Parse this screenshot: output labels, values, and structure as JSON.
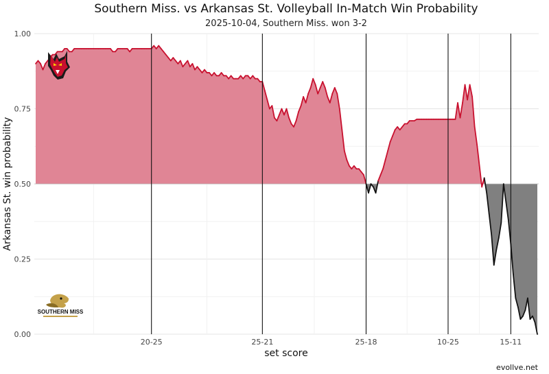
{
  "chart_data": {
    "type": "area",
    "title": "Southern Miss. vs Arkansas St. Volleyball In-Match Win Probability",
    "subtitle": "2025-10-04, Southern Miss. won 3-2",
    "xlabel": "set score",
    "ylabel": "Arkansas St. win probability",
    "caption": "evollve.net",
    "ylim": [
      0,
      1
    ],
    "yticks": [
      "0.00",
      "0.25",
      "0.50",
      "0.75",
      "1.00"
    ],
    "baseline": 0.5,
    "grid": true,
    "set_boundaries": [
      {
        "point": 48,
        "label": "20-25"
      },
      {
        "point": 94,
        "label": "25-21"
      },
      {
        "point": 137,
        "label": "25-18"
      },
      {
        "point": 171,
        "label": "10-25"
      },
      {
        "point": 197,
        "label": "15-11"
      }
    ],
    "series": [
      {
        "team": "Arkansas St.",
        "color": "#c8102e",
        "fill": "#e08595",
        "logo": "red-wolf-logo",
        "values": [
          0.9,
          0.91,
          0.9,
          0.88,
          0.9,
          0.91,
          0.92,
          0.93,
          0.93,
          0.94,
          0.94,
          0.94,
          0.95,
          0.95,
          0.94,
          0.94,
          0.95,
          0.95,
          0.95,
          0.95,
          0.95,
          0.95,
          0.95,
          0.95,
          0.95,
          0.95,
          0.95,
          0.95,
          0.95,
          0.95,
          0.95,
          0.95,
          0.94,
          0.94,
          0.95,
          0.95,
          0.95,
          0.95,
          0.95,
          0.94,
          0.95,
          0.95,
          0.95,
          0.95,
          0.95,
          0.95,
          0.95,
          0.95,
          0.95,
          0.96,
          0.95,
          0.96,
          0.95,
          0.94,
          0.93,
          0.92,
          0.91,
          0.92,
          0.91,
          0.9,
          0.91,
          0.89,
          0.9,
          0.91,
          0.89,
          0.9,
          0.88,
          0.89,
          0.88,
          0.87,
          0.88,
          0.87,
          0.87,
          0.86,
          0.87,
          0.86,
          0.86,
          0.87,
          0.86,
          0.86,
          0.85,
          0.86,
          0.85,
          0.85,
          0.85,
          0.86,
          0.85,
          0.86,
          0.86,
          0.85,
          0.86,
          0.85,
          0.85,
          0.84,
          0.84,
          0.81,
          0.78,
          0.75,
          0.76,
          0.72,
          0.71,
          0.73,
          0.75,
          0.73,
          0.75,
          0.72,
          0.7,
          0.69,
          0.71,
          0.74,
          0.76,
          0.79,
          0.77,
          0.8,
          0.82,
          0.85,
          0.83,
          0.8,
          0.82,
          0.84,
          0.82,
          0.79,
          0.77,
          0.8,
          0.82,
          0.8,
          0.75,
          0.68,
          0.61,
          0.58,
          0.56,
          0.55,
          0.56,
          0.55,
          0.55,
          0.54,
          0.53,
          0.5,
          0.47,
          0.5,
          0.49,
          0.47,
          0.51,
          0.53,
          0.55,
          0.58,
          0.61,
          0.64,
          0.66,
          0.68,
          0.69,
          0.68,
          0.69,
          0.7,
          0.7,
          0.71,
          0.71,
          0.71,
          0.715,
          0.715,
          0.715,
          0.715,
          0.715,
          0.715,
          0.715,
          0.715,
          0.715,
          0.715,
          0.715,
          0.715,
          0.715,
          0.715,
          0.715,
          0.715,
          0.715,
          0.77,
          0.72,
          0.77,
          0.83,
          0.78,
          0.83,
          0.79,
          0.69,
          0.63,
          0.56,
          0.49,
          0.52,
          0.47,
          0.4,
          0.33,
          0.23,
          0.28,
          0.32,
          0.37,
          0.5,
          0.44,
          0.38,
          0.3,
          0.2,
          0.12,
          0.09,
          0.05,
          0.06,
          0.08,
          0.12,
          0.05,
          0.06,
          0.04,
          0.0
        ]
      },
      {
        "team": "Southern Miss.",
        "color": "#111111",
        "fill": "#808080",
        "logo": "golden-eagle-logo",
        "logo_text": "SOUTHERN MISS"
      }
    ]
  }
}
